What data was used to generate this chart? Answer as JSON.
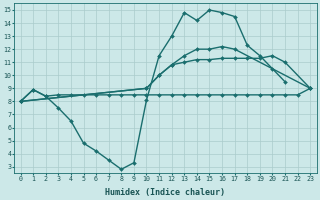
{
  "xlabel": "Humidex (Indice chaleur)",
  "xlim": [
    -0.5,
    23.5
  ],
  "ylim": [
    2.5,
    15.5
  ],
  "xticks": [
    0,
    1,
    2,
    3,
    4,
    5,
    6,
    7,
    8,
    9,
    10,
    11,
    12,
    13,
    14,
    15,
    16,
    17,
    18,
    19,
    20,
    21,
    22,
    23
  ],
  "yticks": [
    3,
    4,
    5,
    6,
    7,
    8,
    9,
    10,
    11,
    12,
    13,
    14,
    15
  ],
  "background_color": "#cce8e8",
  "grid_color": "#aacccc",
  "line_color": "#1a6e6e",
  "line_width": 1.0,
  "marker": "D",
  "marker_size": 2.0,
  "line1": [
    8.0,
    8.9,
    8.4,
    8.5,
    8.5,
    8.5,
    8.5,
    8.5,
    8.5,
    8.5,
    8.5,
    8.5,
    8.5,
    8.5,
    8.5,
    8.5,
    8.5,
    8.5,
    8.5,
    8.5,
    8.5,
    8.5,
    8.5,
    9.0
  ],
  "line2": [
    8.0,
    8.9,
    8.4,
    7.5,
    6.5,
    4.8,
    4.2,
    3.5,
    2.8,
    3.3,
    8.1,
    11.5,
    13.0,
    14.8,
    14.2,
    15.0,
    14.8,
    14.5,
    12.3,
    11.5,
    10.5,
    9.5,
    null,
    null
  ],
  "line3": [
    8.0,
    null,
    null,
    null,
    null,
    null,
    null,
    null,
    null,
    null,
    9.0,
    10.0,
    10.8,
    11.0,
    11.2,
    11.2,
    11.3,
    11.3,
    11.3,
    11.3,
    11.5,
    11.0,
    null,
    9.0
  ],
  "line4": [
    8.0,
    null,
    null,
    null,
    null,
    null,
    null,
    null,
    null,
    null,
    9.0,
    10.0,
    10.8,
    11.5,
    12.0,
    12.0,
    12.2,
    12.0,
    null,
    null,
    null,
    null,
    null,
    9.0
  ]
}
